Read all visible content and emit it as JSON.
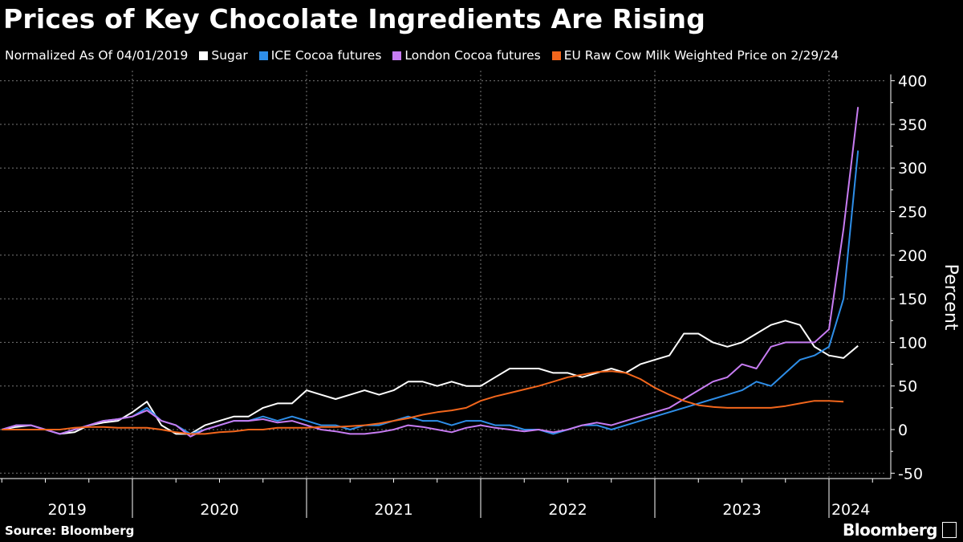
{
  "title": "Prices of Key Chocolate Ingredients Are Rising",
  "legend_note": "Normalized As Of 04/01/2019",
  "legend_suffix": " on 2/29/24",
  "source": "Source: Bloomberg",
  "logo": "Bloomberg",
  "chart_data": {
    "type": "line",
    "title": "Prices of Key Chocolate Ingredients Are Rising",
    "ylabel": "Percent",
    "ylim": [
      -60,
      405
    ],
    "yticks": [
      400,
      350,
      300,
      250,
      200,
      150,
      100,
      50,
      0,
      -50
    ],
    "xlim": [
      "2019-04",
      "2024-04"
    ],
    "xticks": [
      "2019",
      "2020",
      "2021",
      "2022",
      "2023",
      "2024"
    ],
    "grid": true,
    "legend_placement": "top",
    "x": [
      "2019-04",
      "2019-05",
      "2019-06",
      "2019-07",
      "2019-08",
      "2019-09",
      "2019-10",
      "2019-11",
      "2019-12",
      "2020-01",
      "2020-02",
      "2020-03",
      "2020-04",
      "2020-05",
      "2020-06",
      "2020-07",
      "2020-08",
      "2020-09",
      "2020-10",
      "2020-11",
      "2020-12",
      "2021-01",
      "2021-02",
      "2021-03",
      "2021-04",
      "2021-05",
      "2021-06",
      "2021-07",
      "2021-08",
      "2021-09",
      "2021-10",
      "2021-11",
      "2021-12",
      "2022-01",
      "2022-02",
      "2022-03",
      "2022-04",
      "2022-05",
      "2022-06",
      "2022-07",
      "2022-08",
      "2022-09",
      "2022-10",
      "2022-11",
      "2022-12",
      "2023-01",
      "2023-02",
      "2023-03",
      "2023-04",
      "2023-05",
      "2023-06",
      "2023-07",
      "2023-08",
      "2023-09",
      "2023-10",
      "2023-11",
      "2023-12",
      "2024-01",
      "2024-02",
      "2024-03"
    ],
    "series": [
      {
        "name": "Sugar",
        "color": "#ffffff",
        "values": [
          0,
          3,
          5,
          0,
          -5,
          -3,
          5,
          8,
          10,
          20,
          32,
          5,
          -5,
          -5,
          5,
          10,
          15,
          15,
          25,
          30,
          30,
          45,
          40,
          35,
          40,
          45,
          40,
          45,
          55,
          55,
          50,
          55,
          50,
          50,
          60,
          70,
          70,
          70,
          65,
          65,
          60,
          65,
          70,
          65,
          75,
          80,
          85,
          110,
          110,
          100,
          95,
          100,
          110,
          120,
          125,
          120,
          95,
          85,
          82,
          96
        ]
      },
      {
        "name": "ICE Cocoa futures",
        "color": "#2e8ee8",
        "values": [
          0,
          5,
          5,
          0,
          -5,
          0,
          5,
          10,
          12,
          15,
          25,
          10,
          5,
          -5,
          0,
          5,
          10,
          10,
          15,
          10,
          15,
          10,
          5,
          5,
          0,
          5,
          5,
          10,
          15,
          10,
          10,
          5,
          10,
          10,
          5,
          5,
          0,
          0,
          -5,
          0,
          5,
          5,
          0,
          5,
          10,
          15,
          20,
          25,
          30,
          35,
          40,
          45,
          55,
          50,
          65,
          80,
          85,
          95,
          150,
          320
        ]
      },
      {
        "name": "London Cocoa futures",
        "color": "#c77cf2",
        "values": [
          0,
          5,
          5,
          0,
          -5,
          0,
          5,
          10,
          12,
          15,
          22,
          10,
          5,
          -8,
          0,
          5,
          10,
          10,
          12,
          8,
          10,
          5,
          0,
          -2,
          -5,
          -5,
          -3,
          0,
          5,
          3,
          0,
          -3,
          2,
          5,
          2,
          0,
          -2,
          0,
          -3,
          0,
          5,
          8,
          5,
          10,
          15,
          20,
          25,
          35,
          45,
          55,
          60,
          75,
          70,
          95,
          100,
          100,
          100,
          115,
          230,
          370
        ]
      },
      {
        "name": "EU Raw Cow Milk Weighted Price",
        "color": "#f2661c",
        "values": [
          0,
          0,
          0,
          0,
          0,
          2,
          3,
          3,
          2,
          2,
          2,
          0,
          -3,
          -5,
          -5,
          -3,
          -2,
          0,
          0,
          2,
          2,
          2,
          3,
          3,
          4,
          5,
          7,
          10,
          13,
          17,
          20,
          22,
          25,
          33,
          38,
          42,
          46,
          50,
          55,
          60,
          63,
          66,
          67,
          65,
          58,
          48,
          40,
          33,
          28,
          26,
          25,
          25,
          25,
          25,
          27,
          30,
          33,
          33,
          32,
          null
        ]
      }
    ]
  }
}
